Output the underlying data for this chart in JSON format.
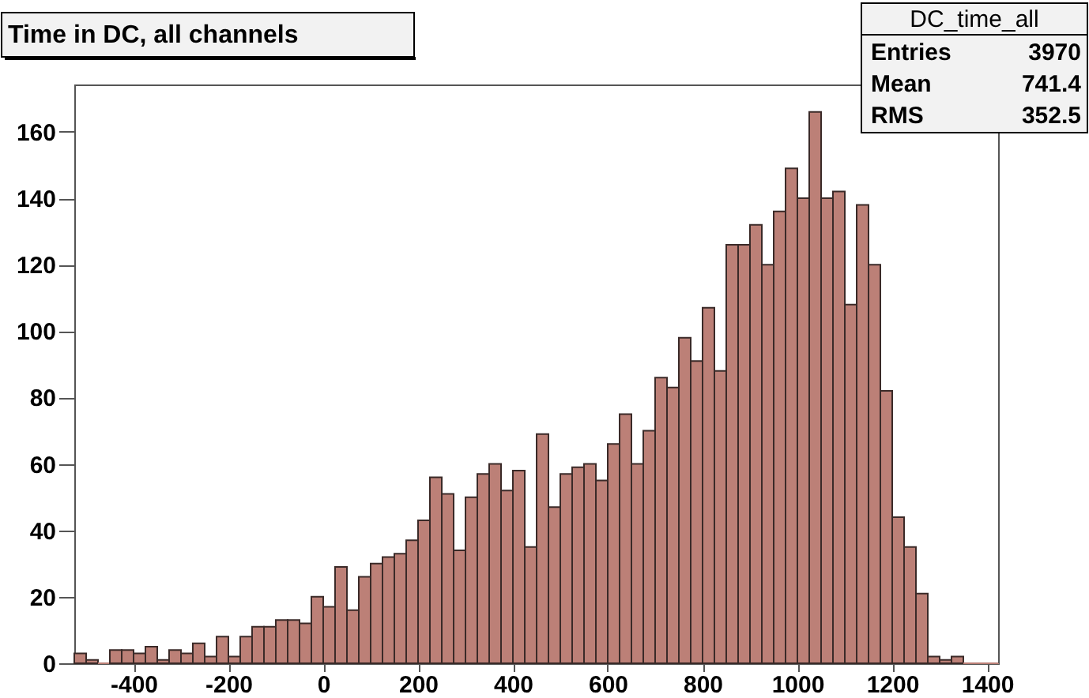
{
  "chart_data": {
    "type": "histogram",
    "title": "Time in DC, all channels",
    "bins": [
      -525,
      -500,
      -475,
      -450,
      -425,
      -400,
      -375,
      -350,
      -325,
      -300,
      -275,
      -250,
      -225,
      -200,
      -175,
      -150,
      -125,
      -100,
      -75,
      -50,
      -25,
      0,
      25,
      50,
      75,
      100,
      125,
      150,
      175,
      200,
      225,
      250,
      275,
      300,
      325,
      350,
      375,
      400,
      425,
      450,
      475,
      500,
      525,
      550,
      575,
      600,
      625,
      650,
      675,
      700,
      725,
      750,
      775,
      800,
      825,
      850,
      875,
      900,
      925,
      950,
      975,
      1000,
      1025,
      1050,
      1075,
      1100,
      1125,
      1150,
      1175,
      1200,
      1225,
      1250,
      1275,
      1300,
      1325,
      1350,
      1375,
      1400,
      1425
    ],
    "values": [
      3,
      1,
      0,
      4,
      4,
      3,
      5,
      1,
      4,
      3,
      6,
      2,
      8,
      2,
      8,
      11,
      11,
      13,
      13,
      12,
      20,
      17,
      29,
      16,
      26,
      30,
      32,
      33,
      37,
      43,
      56,
      51,
      34,
      50,
      57,
      60,
      52,
      58,
      35,
      69,
      47,
      57,
      59,
      60,
      55,
      66,
      75,
      60,
      70,
      86,
      83,
      98,
      91,
      107,
      88,
      126,
      126,
      132,
      120,
      136,
      149,
      140,
      166,
      140,
      142,
      108,
      138,
      120,
      82,
      44,
      35,
      21,
      2,
      1,
      2,
      0,
      0,
      0
    ],
    "color": "#bc8077",
    "xlim": [
      -525,
      1425
    ],
    "ylim": [
      0,
      174
    ],
    "xticks": [
      -400,
      -200,
      0,
      200,
      400,
      600,
      800,
      1000,
      1200,
      1400
    ],
    "yticks": [
      0,
      20,
      40,
      60,
      80,
      100,
      120,
      140,
      160
    ],
    "grid": false,
    "annotations": [
      "DC_time_all",
      "Entries 3970",
      "Mean 741.4",
      "RMS 352.5"
    ]
  }
}
